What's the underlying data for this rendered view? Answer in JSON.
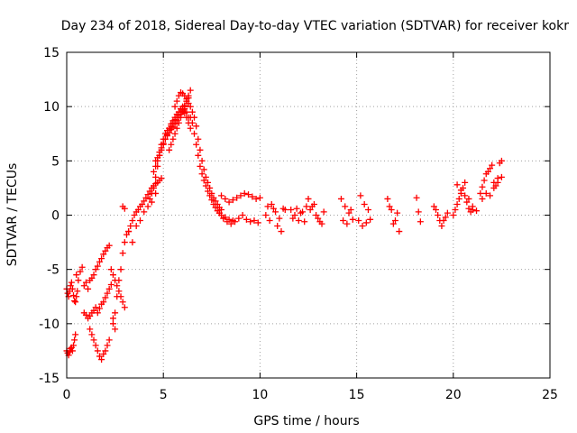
{
  "chart_data": {
    "type": "scatter",
    "title": "Day 234 of 2018, Sidereal Day-to-day VTEC variation (SDTVAR) for receiver kokr",
    "xlabel": "GPS time / hours",
    "ylabel": "SDTVAR / TECUs",
    "xlim": [
      0,
      25
    ],
    "ylim": [
      -15,
      15
    ],
    "grid": true,
    "marker": "plus",
    "x_ticks": [
      0,
      5,
      10,
      15,
      20,
      25
    ],
    "y_ticks": [
      -15,
      -10,
      -5,
      0,
      5,
      10,
      15
    ],
    "x_tick_labels": [
      "0",
      "5",
      "10",
      "15",
      "20",
      "25"
    ],
    "y_tick_labels": [
      "-15",
      "-10",
      "-5",
      "0",
      "5",
      "10",
      "15"
    ],
    "series": [
      {
        "name": "kokr",
        "color": "#ff0000",
        "x": [
          0.0,
          0.05,
          0.1,
          0.15,
          0.2,
          0.25,
          0.3,
          0.35,
          0.4,
          0.45,
          0.5,
          0.55,
          0.0,
          0.05,
          0.1,
          0.15,
          0.2,
          0.25,
          0.3,
          0.35,
          0.4,
          0.45,
          0.5,
          0.6,
          0.7,
          0.8,
          0.9,
          1.0,
          1.1,
          1.2,
          1.3,
          1.4,
          1.5,
          1.6,
          1.7,
          1.8,
          1.9,
          2.0,
          2.1,
          2.2,
          2.3,
          2.4,
          2.5,
          2.6,
          2.7,
          2.8,
          2.9,
          3.0,
          0.9,
          1.0,
          1.1,
          1.2,
          1.3,
          1.4,
          1.5,
          1.6,
          1.7,
          1.8,
          1.9,
          2.0,
          2.1,
          2.2,
          2.3,
          2.4,
          2.5,
          1.2,
          1.3,
          1.4,
          1.5,
          1.6,
          1.7,
          1.8,
          1.9,
          2.0,
          2.1,
          2.2,
          2.4,
          2.5,
          2.6,
          2.7,
          2.8,
          2.9,
          3.0,
          3.1,
          3.2,
          3.3,
          3.4,
          3.5,
          3.6,
          3.7,
          3.8,
          3.9,
          4.0,
          4.1,
          4.2,
          4.3,
          4.4,
          4.5,
          4.6,
          4.7,
          4.8,
          4.9,
          2.9,
          3.0,
          3.2,
          3.4,
          3.6,
          3.8,
          4.0,
          4.2,
          4.4,
          4.6,
          4.3,
          4.4,
          4.5,
          4.6,
          4.7,
          4.8,
          4.9,
          5.0,
          5.1,
          5.2,
          5.3,
          5.4,
          5.5,
          5.6,
          5.7,
          5.8,
          5.9,
          6.0,
          6.1,
          6.2,
          6.3,
          4.5,
          4.6,
          4.7,
          4.8,
          4.9,
          5.0,
          5.1,
          5.2,
          5.3,
          5.4,
          5.5,
          5.6,
          5.7,
          5.8,
          5.9,
          6.0,
          6.1,
          6.2,
          6.3,
          6.4,
          4.6,
          4.7,
          4.8,
          4.9,
          5.0,
          5.1,
          5.2,
          5.3,
          5.4,
          5.5,
          5.6,
          5.7,
          5.8,
          5.9,
          6.0,
          6.1,
          6.2,
          6.3,
          5.3,
          5.4,
          5.5,
          5.6,
          5.7,
          5.8,
          5.9,
          6.0,
          6.1,
          6.2,
          6.3,
          6.4,
          5.6,
          5.7,
          5.8,
          5.9,
          6.0,
          6.1,
          6.2,
          6.3,
          6.4,
          6.5,
          6.6,
          6.7,
          6.8,
          6.9,
          7.0,
          7.1,
          7.2,
          7.3,
          7.4,
          7.5,
          7.6,
          7.7,
          7.8,
          7.9,
          8.0,
          6.4,
          6.5,
          6.6,
          6.7,
          6.8,
          6.9,
          7.0,
          7.1,
          7.2,
          7.3,
          7.4,
          7.5,
          7.6,
          7.7,
          7.8,
          7.9,
          8.0,
          8.2,
          8.4,
          8.6,
          7.9,
          8.1,
          8.3,
          8.5,
          8.7,
          8.9,
          9.1,
          9.3,
          9.5,
          9.7,
          9.9,
          8.0,
          8.2,
          8.4,
          8.6,
          8.8,
          9.0,
          9.2,
          9.4,
          9.6,
          9.8,
          10.0,
          10.3,
          10.5,
          10.7,
          10.9,
          11.1,
          11.3,
          10.4,
          10.6,
          10.8,
          11.0,
          11.2,
          11.6,
          11.8,
          12.0,
          12.2,
          12.4,
          11.7,
          11.9,
          12.1,
          12.3,
          12.5,
          12.7,
          12.9,
          13.1,
          13.3,
          12.6,
          12.8,
          13.0,
          13.2,
          14.2,
          14.4,
          14.6,
          14.8,
          14.3,
          14.5,
          14.7,
          15.1,
          15.3,
          15.5,
          15.7,
          15.2,
          15.4,
          15.6,
          16.6,
          16.8,
          17.0,
          17.2,
          16.7,
          16.9,
          17.1,
          18.1,
          18.2,
          18.3,
          19.0,
          19.1,
          19.2,
          19.3,
          19.4,
          19.5,
          19.6,
          19.7,
          20.0,
          20.1,
          20.2,
          20.3,
          20.4,
          20.5,
          20.6,
          20.7,
          20.8,
          20.9,
          21.0,
          20.2,
          20.4,
          20.6,
          20.8,
          21.0,
          21.2,
          21.4,
          21.5,
          21.6,
          21.7,
          21.8,
          21.9,
          22.0,
          22.1,
          22.2,
          22.3,
          22.4,
          22.5,
          21.5,
          21.7,
          21.9,
          22.1,
          22.3,
          22.5
        ],
        "y": [
          -6.8,
          -7.2,
          -7.5,
          -7.0,
          -6.5,
          -6.2,
          -6.8,
          -7.4,
          -7.9,
          -8.0,
          -7.5,
          -7.0,
          -12.5,
          -12.7,
          -12.9,
          -12.6,
          -12.3,
          -12.2,
          -12.5,
          -12.0,
          -11.5,
          -11.0,
          -5.5,
          -6.0,
          -5.2,
          -4.8,
          -6.5,
          -6.2,
          -6.8,
          -6.0,
          -5.8,
          -5.5,
          -5.0,
          -4.7,
          -4.3,
          -4.0,
          -3.6,
          -3.3,
          -3.0,
          -2.8,
          -5.0,
          -5.5,
          -6.0,
          -6.5,
          -7.0,
          -7.5,
          -8.0,
          -8.5,
          -9.0,
          -9.2,
          -9.5,
          -9.3,
          -9.0,
          -8.8,
          -8.5,
          -9.0,
          -8.6,
          -8.2,
          -8.0,
          -7.6,
          -7.2,
          -6.8,
          -6.4,
          -9.5,
          -10.5,
          -10.5,
          -11.0,
          -11.5,
          -12.0,
          -12.5,
          -13.0,
          -13.3,
          -12.8,
          -12.5,
          -12.0,
          -11.5,
          -10.0,
          -9.0,
          -7.5,
          -6.0,
          -5.0,
          -3.5,
          -2.5,
          -1.8,
          -1.5,
          -1.0,
          -0.5,
          0.0,
          0.3,
          0.5,
          0.8,
          1.0,
          1.3,
          1.6,
          1.9,
          2.2,
          2.5,
          2.7,
          2.9,
          3.0,
          3.2,
          3.4,
          0.8,
          0.6,
          -1.5,
          -2.5,
          -1.0,
          -0.5,
          0.3,
          0.8,
          1.2,
          2.0,
          1.5,
          2.0,
          2.5,
          3.5,
          4.5,
          5.5,
          6.5,
          7.0,
          7.5,
          7.8,
          8.0,
          8.4,
          8.7,
          9.0,
          9.3,
          9.5,
          9.8,
          10.0,
          9.8,
          9.5,
          9.0,
          4.0,
          4.5,
          5.0,
          5.5,
          6.0,
          6.5,
          7.0,
          7.4,
          7.8,
          8.2,
          8.5,
          8.8,
          9.0,
          9.2,
          9.5,
          9.6,
          9.4,
          9.0,
          8.5,
          8.0,
          5.0,
          5.3,
          5.8,
          6.2,
          6.6,
          7.0,
          7.3,
          7.6,
          7.9,
          8.1,
          8.4,
          8.7,
          9.0,
          9.3,
          9.7,
          10.1,
          10.5,
          10.8,
          6.0,
          6.5,
          7.0,
          7.5,
          8.0,
          8.5,
          9.0,
          9.5,
          10.0,
          10.5,
          11.0,
          11.5,
          10.0,
          10.5,
          11.0,
          11.3,
          11.2,
          11.0,
          10.7,
          10.3,
          10.0,
          9.5,
          9.0,
          8.2,
          7.0,
          6.0,
          5.0,
          4.2,
          3.5,
          3.0,
          2.5,
          2.0,
          1.6,
          1.3,
          1.0,
          0.7,
          0.5,
          9.0,
          8.5,
          7.5,
          6.5,
          5.5,
          4.5,
          3.8,
          3.2,
          2.7,
          2.2,
          1.8,
          1.4,
          1.0,
          0.7,
          0.4,
          0.2,
          0.0,
          -0.2,
          -0.4,
          -0.5,
          0.2,
          -0.3,
          -0.6,
          -0.8,
          -0.6,
          -0.3,
          0.0,
          -0.4,
          -0.6,
          -0.5,
          -0.7,
          1.8,
          1.5,
          1.2,
          1.4,
          1.6,
          1.8,
          2.0,
          1.9,
          1.7,
          1.5,
          1.6,
          0.0,
          -0.5,
          0.6,
          -1.0,
          -1.5,
          0.5,
          0.8,
          1.0,
          0.3,
          -0.3,
          0.6,
          0.5,
          0.0,
          -0.5,
          0.3,
          0.8,
          -0.3,
          0.6,
          0.2,
          -0.6,
          1.5,
          0.8,
          0.0,
          -0.6,
          0.3,
          0.5,
          1.0,
          -0.3,
          -0.8,
          1.5,
          0.8,
          0.2,
          -0.4,
          -0.5,
          -0.8,
          0.5,
          -0.5,
          -1.0,
          -0.7,
          -0.4,
          1.8,
          1.0,
          0.5,
          1.5,
          0.5,
          -0.5,
          -1.5,
          0.8,
          -0.8,
          0.2,
          1.6,
          0.3,
          -0.6,
          0.8,
          0.5,
          0.0,
          -0.5,
          -1.0,
          -0.5,
          -0.2,
          0.2,
          0.0,
          0.5,
          1.0,
          1.5,
          2.0,
          2.5,
          3.0,
          1.2,
          0.6,
          0.3,
          0.5,
          2.8,
          2.3,
          1.8,
          1.5,
          0.8,
          0.4,
          2.0,
          2.6,
          3.2,
          3.8,
          4.0,
          4.3,
          4.6,
          3.0,
          2.7,
          3.4,
          4.8,
          5.0,
          1.5,
          2.0,
          1.8,
          2.5,
          3.0,
          3.5
        ]
      }
    ]
  }
}
